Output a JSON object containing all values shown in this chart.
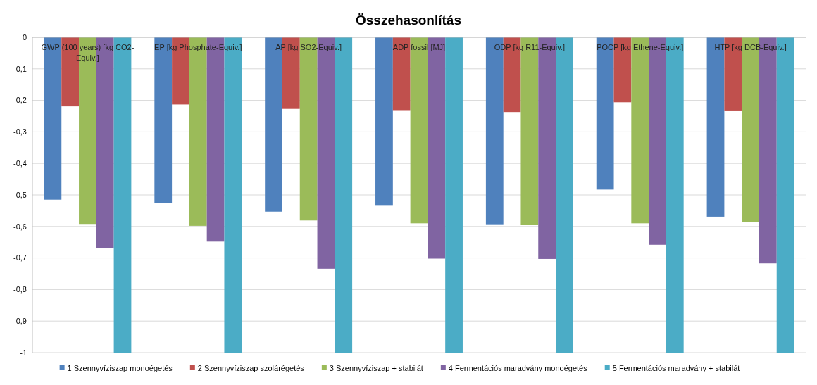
{
  "chart_data": {
    "type": "bar",
    "title": "Összehasonlítás",
    "categories": [
      "GWP (100 years) [kg CO2-Equiv.]",
      "EP [kg Phosphate-Equiv.]",
      "AP [kg SO2-Equiv.]",
      "ADP fossil [MJ]",
      "ODP [kg R11-Equiv.]",
      "POCP [kg Ethene-Equiv.]",
      "HTP [kg DCB-Equiv.]"
    ],
    "series": [
      {
        "name": "1 Szennyvíziszap monoégetés",
        "color": "#4f81bd",
        "values": [
          -0.515,
          -0.525,
          -0.553,
          -0.532,
          -0.593,
          -0.483,
          -0.569
        ]
      },
      {
        "name": "2 Szennyvíziszap szolárégetés",
        "color": "#c0504d",
        "values": [
          -0.219,
          -0.213,
          -0.227,
          -0.231,
          -0.237,
          -0.206,
          -0.232
        ]
      },
      {
        "name": "3 Szennyvíziszap + stabilát",
        "color": "#9bbb59",
        "values": [
          -0.592,
          -0.598,
          -0.581,
          -0.59,
          -0.595,
          -0.59,
          -0.585
        ]
      },
      {
        "name": "4 Fermentációs maradvány monoégetés",
        "color": "#8064a2",
        "values": [
          -0.669,
          -0.648,
          -0.734,
          -0.702,
          -0.703,
          -0.658,
          -0.717
        ]
      },
      {
        "name": "5 Fermentációs maradvány + stabilát",
        "color": "#4bacc6",
        "values": [
          -1,
          -1,
          -1,
          -1,
          -1,
          -1,
          -1
        ]
      }
    ],
    "ylim": [
      -1,
      0
    ],
    "yticks": [
      {
        "value": -1,
        "label": "-1"
      },
      {
        "value": -0.9,
        "label": "-0,9"
      },
      {
        "value": -0.8,
        "label": "-0,8"
      },
      {
        "value": -0.7,
        "label": "-0,7"
      },
      {
        "value": -0.6,
        "label": "-0,6"
      },
      {
        "value": -0.5,
        "label": "-0,5"
      },
      {
        "value": -0.4,
        "label": "-0,4"
      },
      {
        "value": -0.3,
        "label": "-0,3"
      },
      {
        "value": -0.2,
        "label": "-0,2"
      },
      {
        "value": -0.1,
        "label": "-0,1"
      },
      {
        "value": 0,
        "label": "0"
      }
    ],
    "grid": "y",
    "legend": "bottom"
  }
}
